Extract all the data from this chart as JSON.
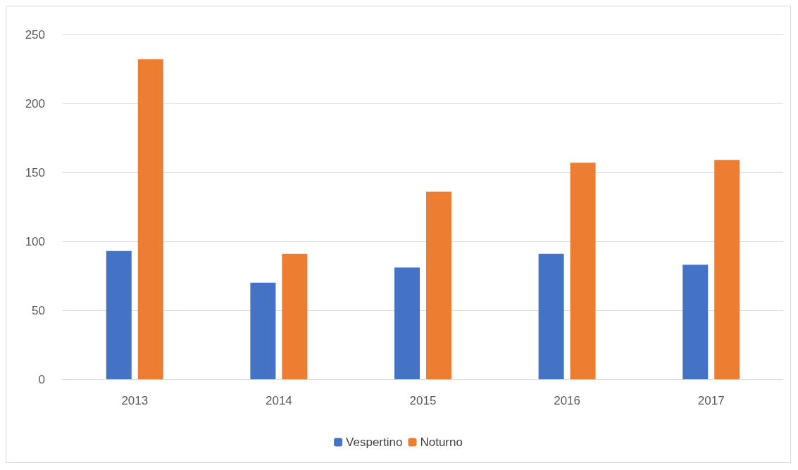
{
  "chart_data": {
    "type": "bar",
    "categories": [
      "2013",
      "2014",
      "2015",
      "2016",
      "2017"
    ],
    "series": [
      {
        "name": "Vespertino",
        "color": "#4472c4",
        "values": [
          93,
          70,
          81,
          91,
          83
        ]
      },
      {
        "name": "Noturno",
        "color": "#ed7d31",
        "values": [
          232,
          91,
          136,
          157,
          159
        ]
      }
    ],
    "ylim": [
      0,
      250
    ],
    "yticks": [
      0,
      50,
      100,
      150,
      200,
      250
    ],
    "grid": "y",
    "legend": "bottom"
  }
}
